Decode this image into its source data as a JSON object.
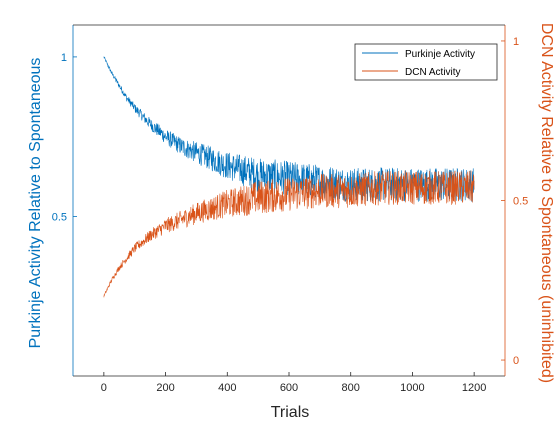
{
  "chart_data": {
    "type": "line",
    "title": "",
    "xlabel": "Trials",
    "ylabel_left": "Purkinje Activity Relative to Spontaneous",
    "ylabel_right": "DCN Activity Relative to Spontaneous (uninhibited)",
    "xlim": [
      -100,
      1300
    ],
    "ylim_left": [
      0,
      1.1
    ],
    "ylim_right": [
      -0.05,
      1.05
    ],
    "x_ticks": [
      0,
      200,
      400,
      600,
      800,
      1000,
      1200
    ],
    "y_ticks_left": [
      0.5,
      1
    ],
    "y_ticks_left_labels": [
      "0.5",
      "1"
    ],
    "y_ticks_right": [
      0,
      0.5,
      1
    ],
    "y_ticks_right_labels": [
      "0",
      "0.5",
      "1"
    ],
    "grid": false,
    "legend_position": "top-right",
    "series": [
      {
        "name": "Purkinje Activity",
        "axis": "left",
        "color": "#0072BD",
        "x": [
          0,
          25,
          50,
          75,
          100,
          150,
          200,
          250,
          300,
          400,
          500,
          600,
          700,
          800,
          900,
          1000,
          1100,
          1200
        ],
        "y": [
          1.0,
          0.95,
          0.91,
          0.87,
          0.84,
          0.79,
          0.75,
          0.72,
          0.7,
          0.66,
          0.63,
          0.62,
          0.61,
          0.6,
          0.6,
          0.6,
          0.6,
          0.6
        ]
      },
      {
        "name": "DCN Activity",
        "axis": "right",
        "color": "#D95319",
        "x": [
          0,
          25,
          50,
          75,
          100,
          150,
          200,
          250,
          300,
          400,
          500,
          600,
          700,
          800,
          900,
          1000,
          1100,
          1200
        ],
        "y": [
          0.2,
          0.25,
          0.29,
          0.32,
          0.35,
          0.39,
          0.42,
          0.44,
          0.46,
          0.49,
          0.51,
          0.52,
          0.53,
          0.53,
          0.54,
          0.54,
          0.54,
          0.54
        ]
      }
    ]
  }
}
